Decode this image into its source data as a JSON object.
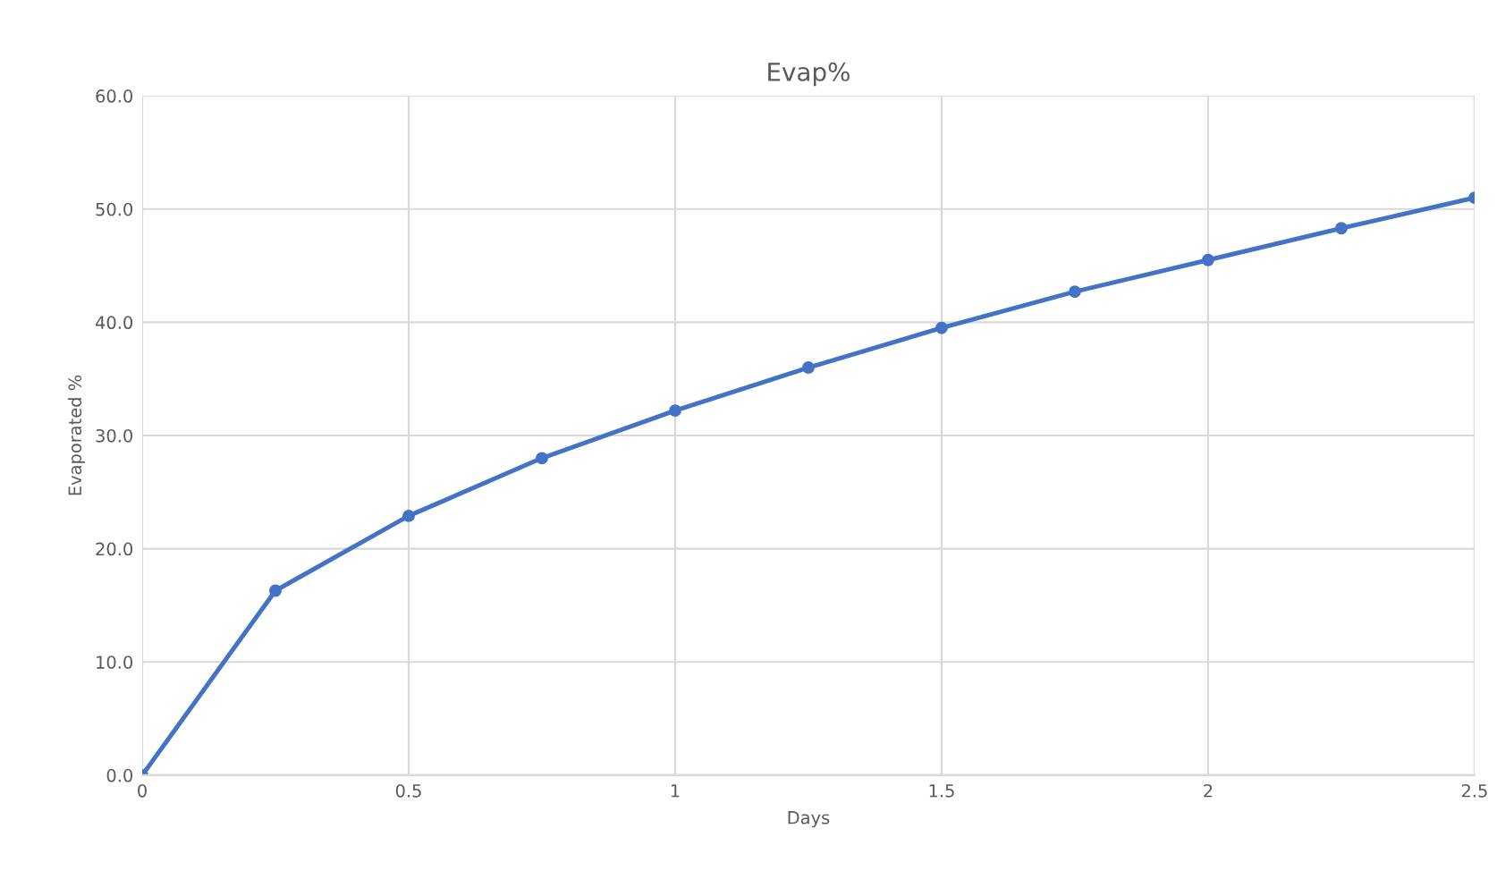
{
  "chart_data": {
    "type": "line",
    "title": "Evap%",
    "xlabel": "Days",
    "ylabel": "Evaporated %",
    "x": [
      0,
      0.25,
      0.5,
      0.75,
      1,
      1.25,
      1.5,
      1.75,
      2,
      2.25,
      2.5
    ],
    "series": [
      {
        "color": "#4472c4",
        "values": [
          0,
          16.3,
          22.9,
          28.0,
          32.2,
          36.0,
          39.5,
          42.7,
          45.5,
          48.3,
          51.0
        ]
      }
    ],
    "xlim": [
      0,
      2.5
    ],
    "xticks": [
      0,
      0.5,
      1,
      1.5,
      2,
      2.5
    ],
    "ylim": [
      0,
      60
    ],
    "yticks": [
      {
        "value": 0,
        "label": "0.0"
      },
      {
        "value": 10,
        "label": "10.0"
      },
      {
        "value": 20,
        "label": "20.0"
      },
      {
        "value": 30,
        "label": "30.0"
      },
      {
        "value": 40,
        "label": "40.0"
      },
      {
        "value": 50,
        "label": "50.0"
      },
      {
        "value": 60,
        "label": "60.0"
      }
    ],
    "grid": true,
    "marker": "circle",
    "line_style": "solid",
    "legend": false
  }
}
